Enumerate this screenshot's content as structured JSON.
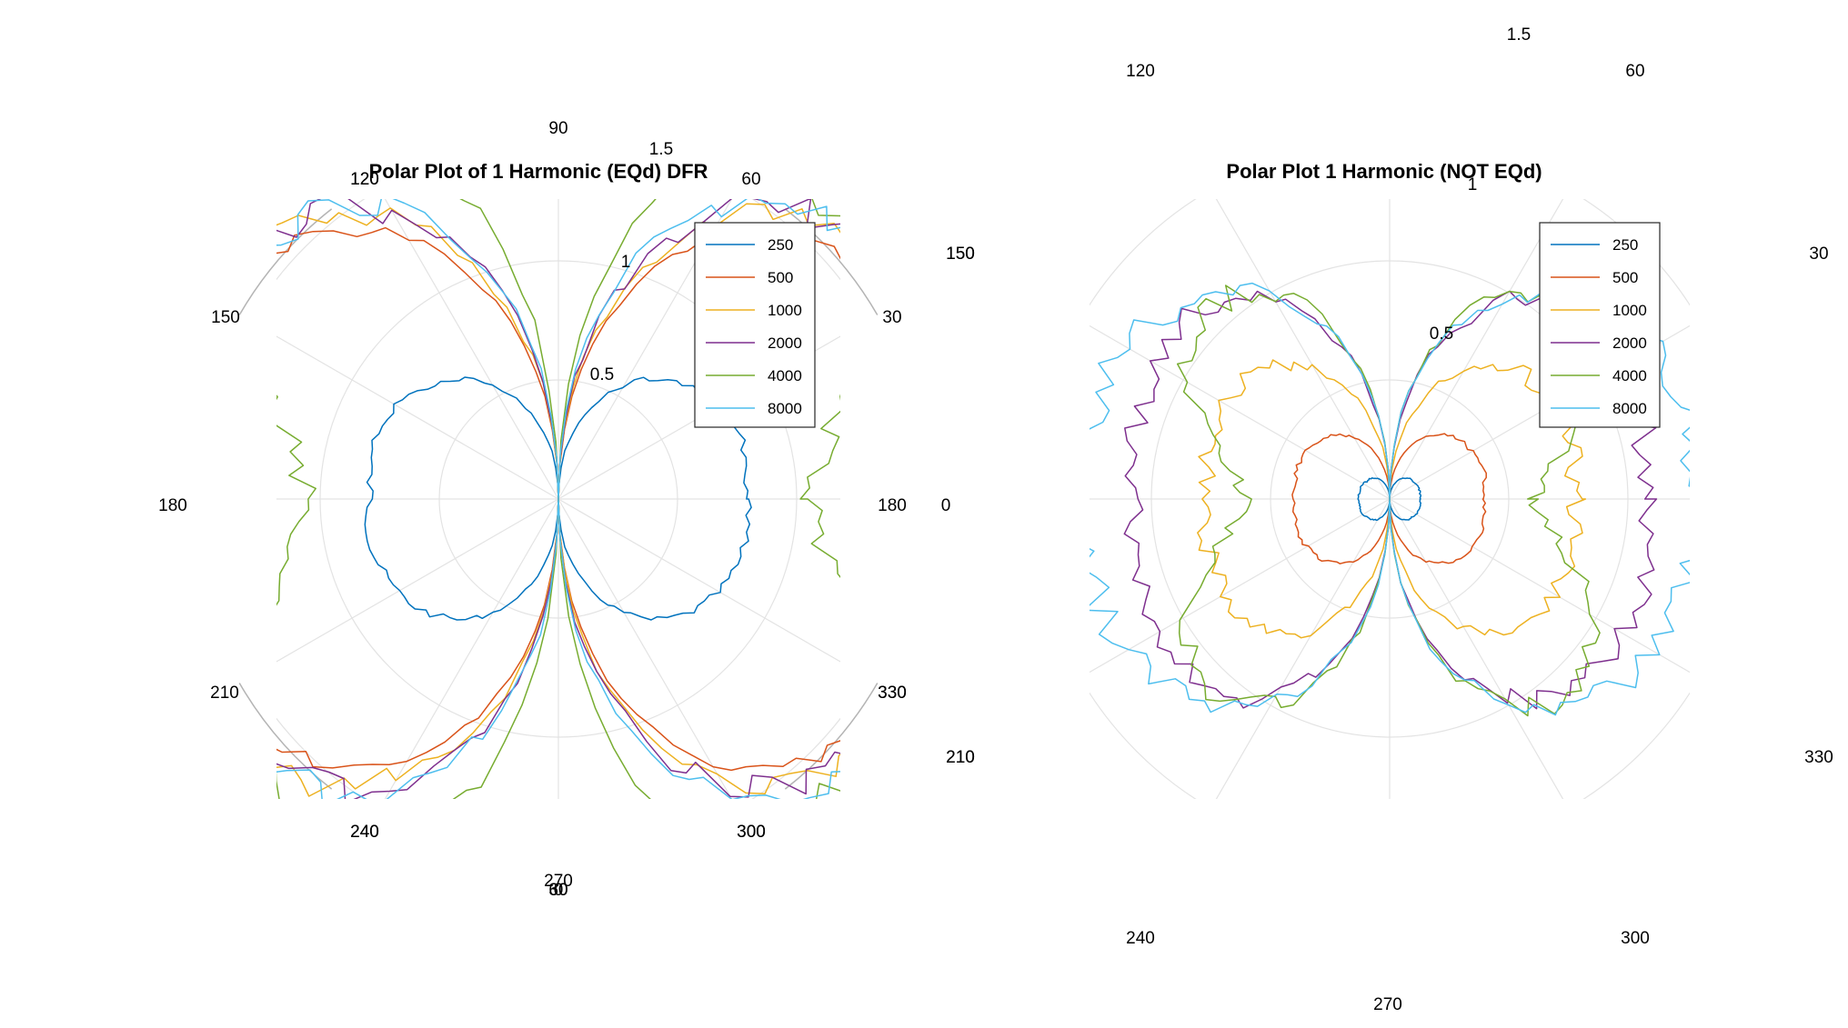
{
  "chart_data": [
    {
      "type": "line",
      "title": "Polar Plot of 1 Harmonic (EQd) DFR",
      "rlim": [
        0,
        1.5
      ],
      "r_ticks": [
        0.5,
        1,
        1.5
      ],
      "r_tick_labels": [
        "0.5",
        "1",
        "1.5"
      ],
      "theta_tick_labels": [
        "0",
        "30",
        "60",
        "90",
        "120",
        "150",
        "180",
        "210",
        "240",
        "270",
        "300",
        "330",
        "180",
        "60",
        "120",
        "240",
        "300",
        "150",
        "30",
        "210",
        "330"
      ],
      "grid": true,
      "legend_position": "top-right",
      "series": [
        {
          "name": "250",
          "color": "#0072BD",
          "peak": 0.79,
          "radius_profile": [
            0.79,
            0.8,
            0.81,
            0.8,
            0.78,
            0.75,
            0.7,
            0.64,
            0.55,
            0.45,
            0.33,
            0.2,
            0.0
          ]
        },
        {
          "name": "500",
          "color": "#D95319",
          "peak": 1.65,
          "radius_profile": [
            1.65,
            1.66,
            1.67,
            1.66,
            1.64,
            1.6,
            1.53,
            1.42,
            1.27,
            1.05,
            0.78,
            0.44,
            0.0
          ]
        },
        {
          "name": "1000",
          "color": "#EDB120",
          "peak": 1.78,
          "radius_profile": [
            1.78,
            1.79,
            1.8,
            1.79,
            1.77,
            1.72,
            1.64,
            1.52,
            1.35,
            1.12,
            0.83,
            0.47,
            0.0
          ]
        },
        {
          "name": "2000",
          "color": "#7E2F8E",
          "peak": 1.68,
          "radius_profile": [
            1.68,
            1.7,
            1.72,
            1.73,
            1.73,
            1.7,
            1.64,
            1.54,
            1.39,
            1.17,
            0.88,
            0.5,
            0.0
          ]
        },
        {
          "name": "4000",
          "color": "#77AC30",
          "peak": 1.05,
          "radius_profile": [
            1.05,
            1.1,
            1.2,
            1.35,
            1.5,
            1.62,
            1.7,
            1.72,
            1.66,
            1.5,
            1.2,
            0.72,
            0.0
          ]
        },
        {
          "name": "8000",
          "color": "#4DBEEE",
          "peak": 1.55,
          "radius_profile": [
            1.55,
            1.57,
            1.6,
            1.63,
            1.65,
            1.65,
            1.62,
            1.55,
            1.42,
            1.22,
            0.93,
            0.55,
            0.0
          ]
        }
      ]
    },
    {
      "type": "line",
      "title": "Polar Plot 1 Harmonic (NOT EQd)",
      "rlim": [
        0,
        1.5
      ],
      "r_ticks": [
        0.5,
        1,
        1.5
      ],
      "r_tick_labels": [
        "0.5",
        "1",
        "1.5"
      ],
      "theta_tick_labels": [
        "60",
        "120",
        "30",
        "150",
        "0",
        "330",
        "210",
        "240",
        "300",
        "270"
      ],
      "grid": true,
      "legend_position": "top-right",
      "series": [
        {
          "name": "250",
          "color": "#0072BD",
          "peak": 0.13,
          "radius_profile": [
            0.13,
            0.13,
            0.13,
            0.13,
            0.13,
            0.12,
            0.12,
            0.11,
            0.1,
            0.08,
            0.06,
            0.03,
            0.0
          ]
        },
        {
          "name": "500",
          "color": "#D95319",
          "peak": 0.4,
          "radius_profile": [
            0.4,
            0.4,
            0.41,
            0.41,
            0.4,
            0.39,
            0.37,
            0.34,
            0.3,
            0.25,
            0.18,
            0.1,
            0.0
          ]
        },
        {
          "name": "1000",
          "color": "#EDB120",
          "peak": 0.78,
          "radius_profile": [
            0.78,
            0.78,
            0.79,
            0.8,
            0.8,
            0.79,
            0.76,
            0.71,
            0.63,
            0.52,
            0.38,
            0.21,
            0.0
          ]
        },
        {
          "name": "2000",
          "color": "#7E2F8E",
          "peak": 1.07,
          "radius_profile": [
            1.07,
            1.08,
            1.1,
            1.12,
            1.14,
            1.14,
            1.12,
            1.06,
            0.96,
            0.8,
            0.6,
            0.34,
            0.0
          ]
        },
        {
          "name": "4000",
          "color": "#77AC30",
          "peak": 0.6,
          "radius_profile": [
            0.6,
            0.65,
            0.74,
            0.86,
            0.98,
            1.06,
            1.1,
            1.08,
            1.0,
            0.86,
            0.64,
            0.36,
            0.0
          ]
        },
        {
          "name": "8000",
          "color": "#4DBEEE",
          "peak": 1.3,
          "radius_profile": [
            1.3,
            1.3,
            1.3,
            1.3,
            1.28,
            1.24,
            1.18,
            1.1,
            0.98,
            0.82,
            0.62,
            0.35,
            0.0
          ]
        }
      ]
    }
  ]
}
